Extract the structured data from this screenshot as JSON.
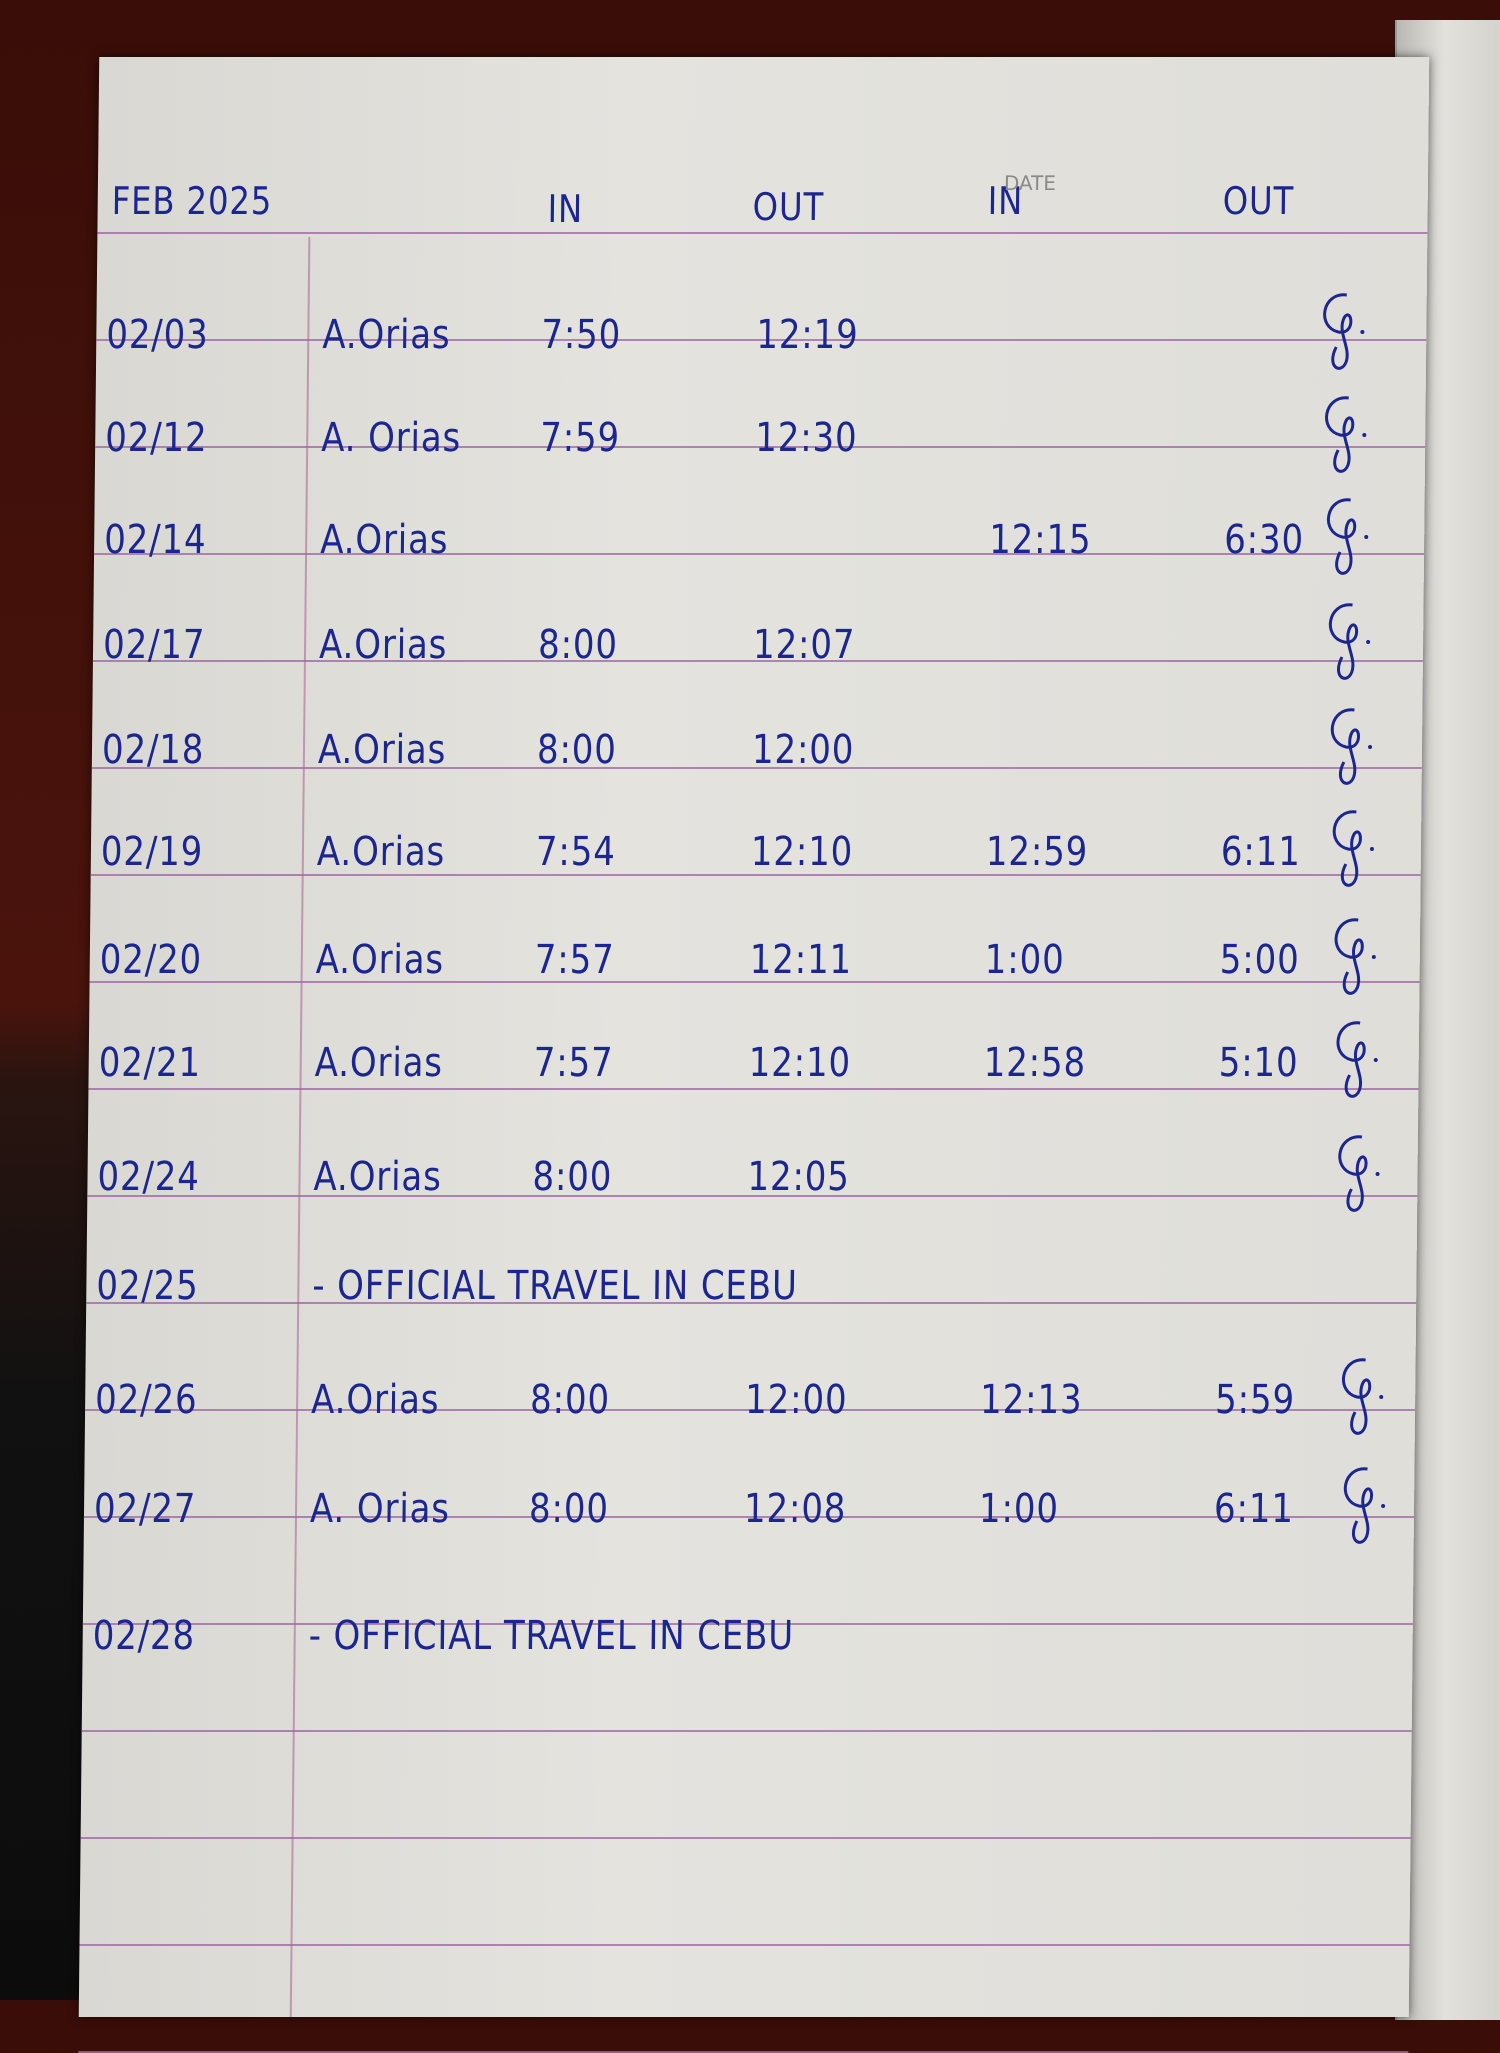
{
  "header": {
    "month": "FEB 2025",
    "printed_date_label": "DATE",
    "col_in_1": "IN",
    "col_out_1": "OUT",
    "col_in_2": "IN",
    "col_out_2": "OUT"
  },
  "ink_color": "#1b2690",
  "rows": [
    {
      "date": "02/03",
      "name": "A.Orias",
      "in1": "7:50",
      "out1": "12:19",
      "in2": "",
      "out2": "",
      "signed": true
    },
    {
      "date": "02/12",
      "name": "A. Orias",
      "in1": "7:59",
      "out1": "12:30",
      "in2": "",
      "out2": "",
      "signed": true
    },
    {
      "date": "02/14",
      "name": "A.Orias",
      "in1": "",
      "out1": "",
      "in2": "12:15",
      "out2": "6:30",
      "signed": true
    },
    {
      "date": "02/17",
      "name": "A.Orias",
      "in1": "8:00",
      "out1": "12:07",
      "in2": "",
      "out2": "",
      "signed": true
    },
    {
      "date": "02/18",
      "name": "A.Orias",
      "in1": "8:00",
      "out1": "12:00",
      "in2": "",
      "out2": "",
      "signed": true
    },
    {
      "date": "02/19",
      "name": "A.Orias",
      "in1": "7:54",
      "out1": "12:10",
      "in2": "12:59",
      "out2": "6:11",
      "signed": true
    },
    {
      "date": "02/20",
      "name": "A.Orias",
      "in1": "7:57",
      "out1": "12:11",
      "in2": "1:00",
      "out2": "5:00",
      "signed": true
    },
    {
      "date": "02/21",
      "name": "A.Orias",
      "in1": "7:57",
      "out1": "12:10",
      "in2": "12:58",
      "out2": "5:10",
      "signed": true
    },
    {
      "date": "02/24",
      "name": "A.Orias",
      "in1": "8:00",
      "out1": "12:05",
      "in2": "",
      "out2": "",
      "signed": true
    },
    {
      "date": "02/25",
      "note": "- OFFICIAL TRAVEL IN CEBU",
      "signed": false
    },
    {
      "date": "02/26",
      "name": "A.Orias",
      "in1": "8:00",
      "out1": "12:00",
      "in2": "12:13",
      "out2": "5:59",
      "signed": true
    },
    {
      "date": "02/27",
      "name": "A. Orias",
      "in1": "8:00",
      "out1": "12:08",
      "in2": "1:00",
      "out2": "6:11",
      "signed": true
    },
    {
      "date": "02/28",
      "note": "- OFFICIAL TRAVEL IN CEBU",
      "signed": false
    }
  ]
}
